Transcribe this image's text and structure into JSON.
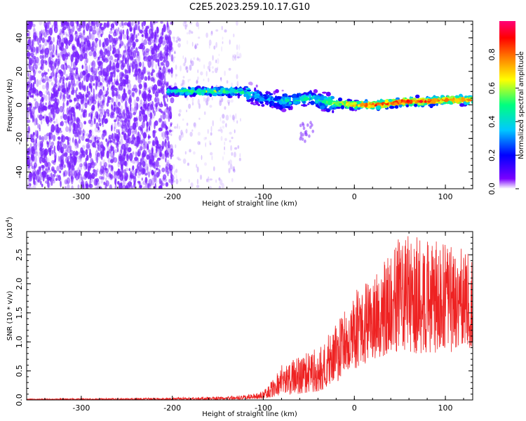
{
  "figure": {
    "title": "C2E5.2023.259.10.17.G10"
  },
  "chart_data": [
    {
      "type": "heatmap",
      "name": "spectrogram",
      "title": "C2E5.2023.259.10.17.G10",
      "xlabel": "Height of straight line (km)",
      "ylabel": "Frequency (Hz)",
      "xlim": [
        -360,
        130
      ],
      "ylim": [
        -50,
        50
      ],
      "x_ticks": [
        -300,
        -200,
        -100,
        0,
        100
      ],
      "x_tick_labels": [
        "-300",
        "-200",
        "-100",
        "0",
        "100"
      ],
      "y_ticks": [
        -40,
        -20,
        0,
        20,
        40
      ],
      "y_tick_labels": [
        "-40",
        "-20",
        "0",
        "20",
        "40"
      ],
      "grid": false,
      "colorbar": {
        "label": "Normalized spectral amplitude",
        "range": [
          0,
          1
        ],
        "ticks": [
          0.0,
          0.2,
          0.4,
          0.6,
          0.8
        ],
        "tick_labels": [
          "0.0",
          "0.2",
          "0.4",
          "0.6",
          "0.8"
        ],
        "colormap": [
          "#ffffff",
          "#7a00ff",
          "#0000ff",
          "#00c8ff",
          "#00ff7f",
          "#ffff00",
          "#ff8000",
          "#ff0000",
          "#ff0078"
        ]
      },
      "ridge": {
        "x": [
          -205,
          -180,
          -150,
          -125,
          -110,
          -95,
          -80,
          -60,
          -45,
          -35,
          -20,
          0,
          20,
          40,
          60,
          80,
          100,
          120,
          130
        ],
        "frequency": [
          8,
          8,
          8,
          8,
          6,
          3,
          2,
          3,
          4,
          2,
          1,
          0,
          0,
          1,
          2,
          2,
          3,
          3,
          3
        ],
        "amplitude": [
          0.45,
          0.55,
          0.55,
          0.5,
          0.4,
          0.35,
          0.4,
          0.45,
          0.4,
          0.5,
          0.6,
          0.75,
          0.85,
          0.9,
          0.9,
          0.85,
          0.8,
          0.8,
          0.8
        ]
      }
    },
    {
      "type": "line",
      "name": "snr",
      "title": "",
      "xlabel": "Height of straight line (km)",
      "ylabel": "SNR (10 * v/v)",
      "y_scale_label": "(x10",
      "y_scale_exponent": "4",
      "xlim": [
        -360,
        130
      ],
      "ylim": [
        0,
        2.9
      ],
      "x_ticks": [
        -300,
        -200,
        -100,
        0,
        100
      ],
      "x_tick_labels": [
        "-300",
        "-200",
        "-100",
        "0",
        "100"
      ],
      "y_ticks": [
        0.0,
        0.5,
        1.0,
        1.5,
        2.0,
        2.5
      ],
      "y_tick_labels": [
        "0.0",
        "0.5",
        "1.0",
        "1.5",
        "2.0",
        "2.5"
      ],
      "grid": false,
      "line_color": "#ee2222",
      "envelope": {
        "x": [
          -360,
          -250,
          -200,
          -150,
          -120,
          -100,
          -90,
          -80,
          -60,
          -40,
          -30,
          -20,
          -10,
          0,
          10,
          20,
          40,
          50,
          60,
          80,
          100,
          130
        ],
        "low": [
          0.0,
          0.0,
          0.0,
          0.0,
          0.01,
          0.02,
          0.05,
          0.08,
          0.1,
          0.15,
          0.2,
          0.3,
          0.4,
          0.5,
          0.6,
          0.7,
          0.8,
          0.8,
          0.8,
          0.8,
          0.8,
          0.9
        ],
        "high": [
          0.02,
          0.03,
          0.04,
          0.06,
          0.08,
          0.15,
          0.35,
          0.6,
          0.75,
          0.9,
          1.1,
          1.3,
          1.6,
          1.9,
          2.0,
          2.1,
          2.6,
          2.8,
          2.9,
          2.8,
          2.7,
          2.55
        ]
      }
    }
  ]
}
